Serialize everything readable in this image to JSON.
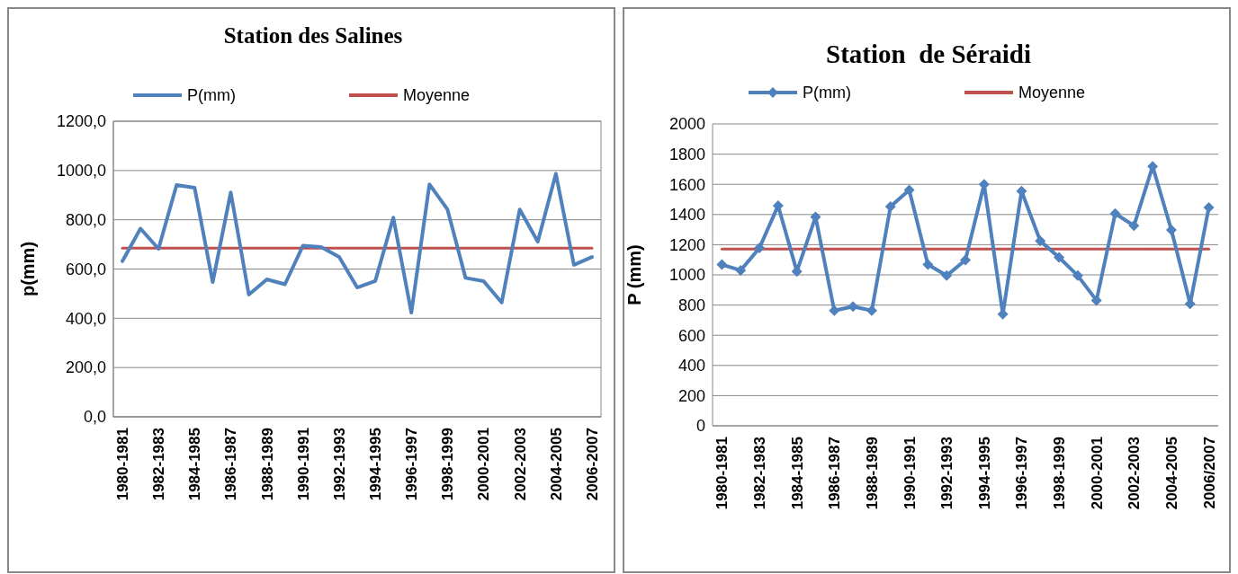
{
  "chart_data": [
    {
      "type": "line",
      "title": "Station des Salines",
      "ylabel": "p(mm)",
      "categories": [
        "1980-1981",
        null,
        "1982-1983",
        null,
        "1984-1985",
        null,
        "1986-1987",
        null,
        "1988-1989",
        null,
        "1990-1991",
        null,
        "1992-1993",
        null,
        "1994-1995",
        null,
        "1996-1997",
        null,
        "1998-1999",
        null,
        "2000-2001",
        null,
        "2002-2003",
        null,
        "2004-2005",
        null,
        "2006-2007"
      ],
      "series": [
        {
          "name": "P(mm)",
          "color": "#4f81bd",
          "values": [
            632,
            764,
            682,
            941,
            930,
            547,
            911,
            496,
            558,
            538,
            695,
            689,
            649,
            525,
            551,
            809,
            423,
            944,
            842,
            564,
            551,
            464,
            842,
            711,
            987,
            617,
            649
          ]
        }
      ],
      "ref_lines": [
        {
          "axis": "y",
          "value": 685,
          "label": "Moyenne",
          "color": "#c0504d"
        }
      ],
      "ylim": [
        0,
        1200
      ],
      "yticks": [
        {
          "value": 0,
          "label": "0,0"
        },
        {
          "value": 200,
          "label": "200,0"
        },
        {
          "value": 400,
          "label": "400,0"
        },
        {
          "value": 600,
          "label": "600,0"
        },
        {
          "value": 800,
          "label": "800,0"
        },
        {
          "value": 1000,
          "label": "1000,0"
        },
        {
          "value": 1200,
          "label": "1200,0"
        }
      ],
      "grid": "y",
      "legend": "top",
      "marker": "none"
    },
    {
      "type": "line",
      "title": "Station  de Séraidi",
      "ylabel": "P (mm)",
      "categories": [
        "1980-1981",
        null,
        "1982-1983",
        null,
        "1984-1985",
        null,
        "1986-1987",
        null,
        "1988-1989",
        null,
        "1990-1991",
        null,
        "1992-1993",
        null,
        "1994-1995",
        null,
        "1996-1997",
        null,
        "1998-1999",
        null,
        "2000-2001",
        null,
        "2002-2003",
        null,
        "2004-2005",
        null,
        "2006/2007"
      ],
      "series": [
        {
          "name": "P(mm)",
          "color": "#4f81bd",
          "values": [
            1068,
            1030,
            1178,
            1459,
            1023,
            1384,
            763,
            790,
            763,
            1452,
            1562,
            1068,
            995,
            1098,
            1600,
            740,
            1555,
            1224,
            1116,
            995,
            831,
            1406,
            1326,
            1719,
            1297,
            808,
            1447
          ]
        }
      ],
      "ref_lines": [
        {
          "axis": "y",
          "value": 1171,
          "label": "Moyenne",
          "color": "#c0504d"
        }
      ],
      "ylim": [
        0,
        2000
      ],
      "yticks": [
        0,
        200,
        400,
        600,
        800,
        1000,
        1200,
        1400,
        1600,
        1800,
        2000
      ],
      "grid": "y",
      "legend": "top",
      "marker": "diamond"
    }
  ]
}
